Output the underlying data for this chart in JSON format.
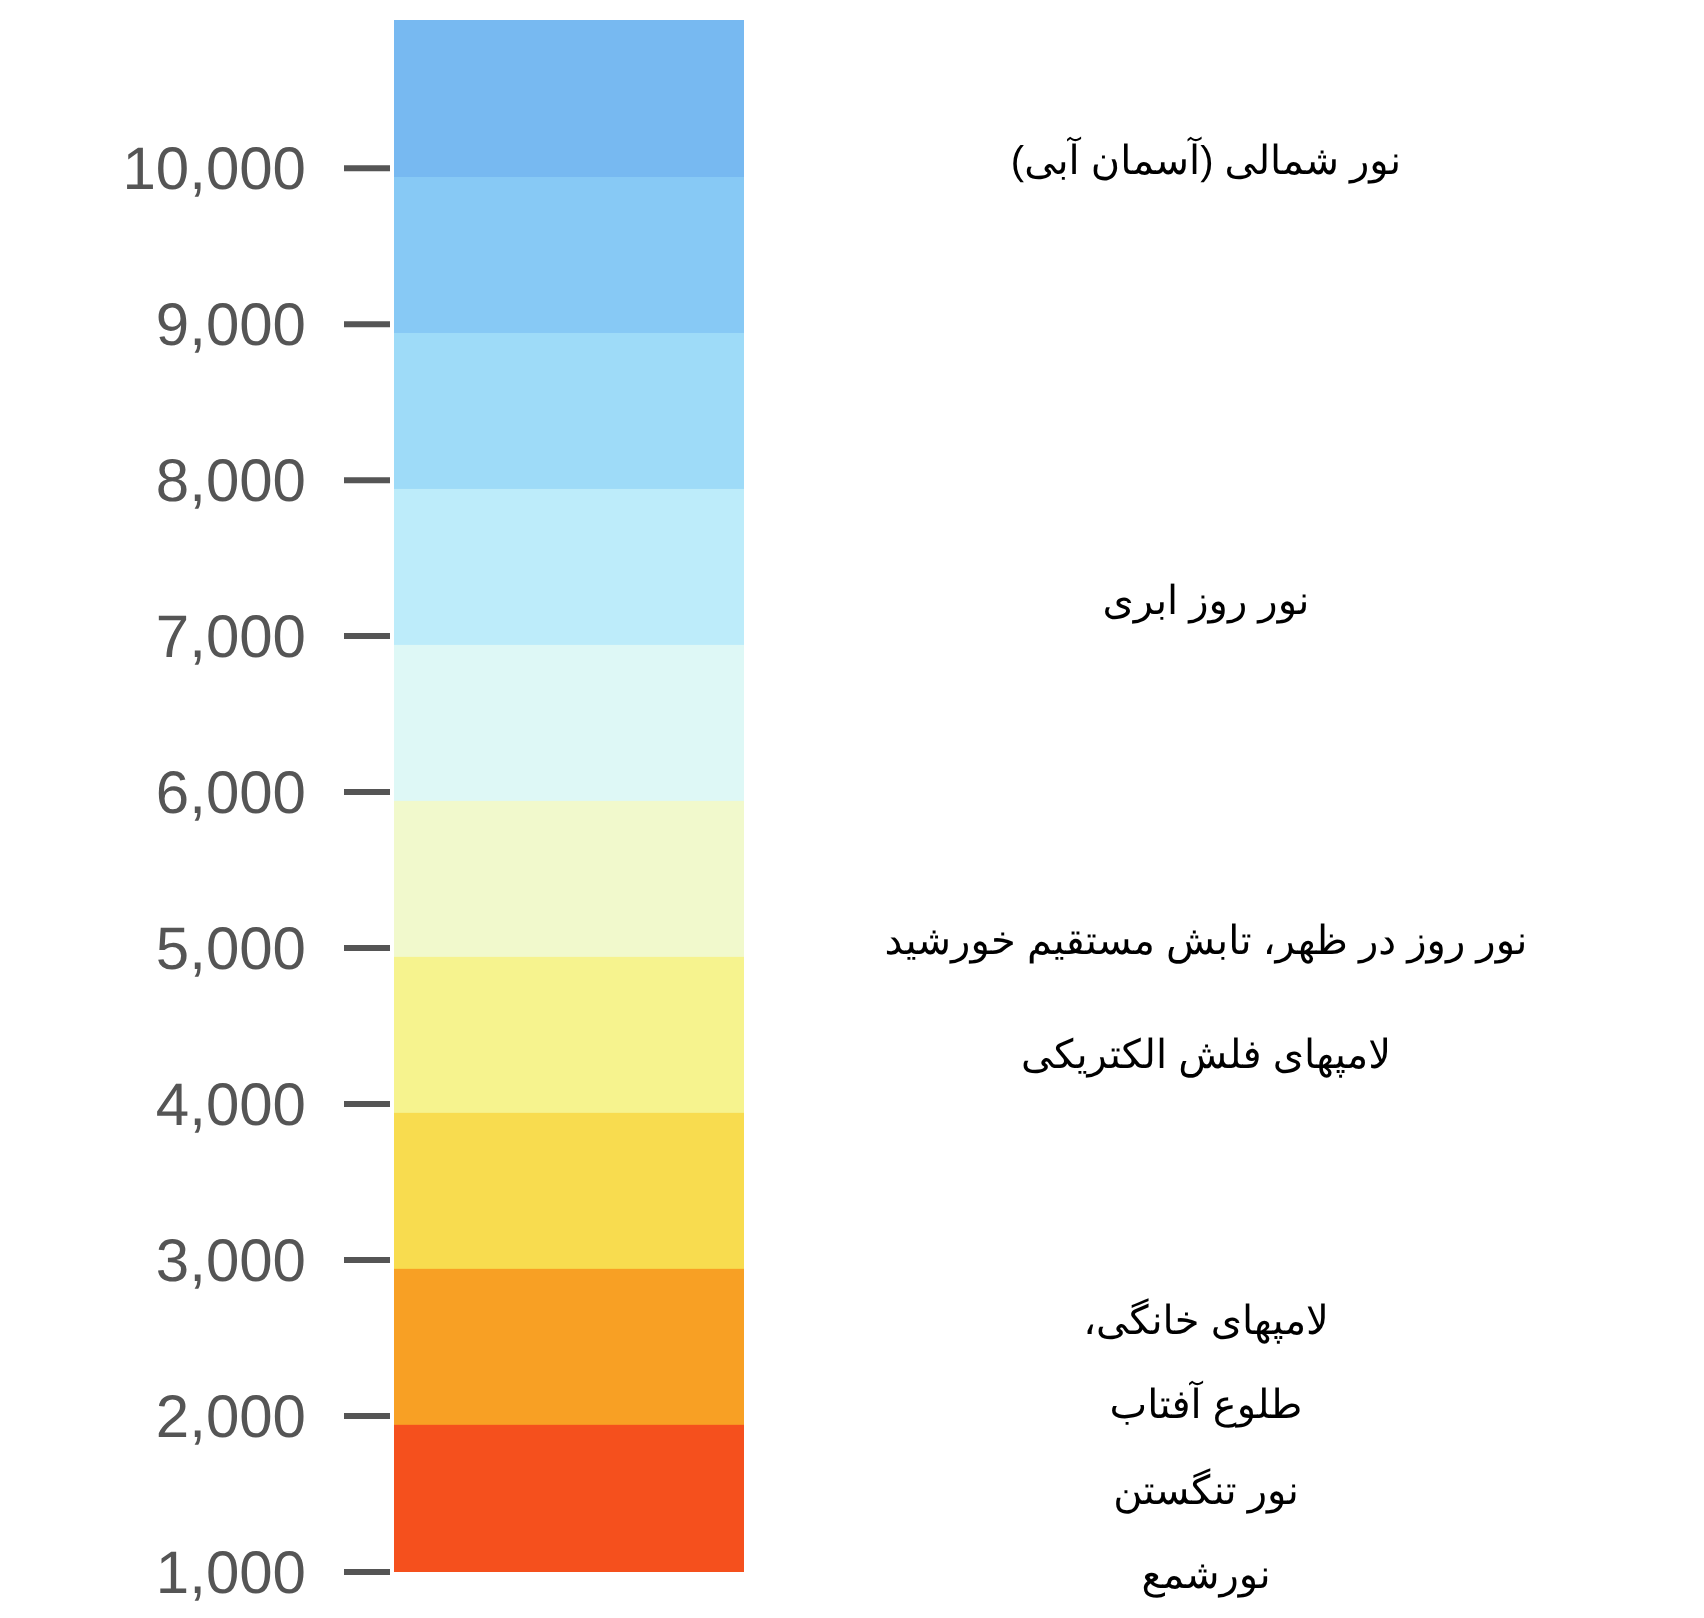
{
  "chart_data": {
    "type": "bar",
    "stacked": true,
    "categories": [
      null
    ],
    "ylim": [
      1000,
      10950
    ],
    "yticks": [
      {
        "value": 1000,
        "label": "1,000"
      },
      {
        "value": 2000,
        "label": "2,000"
      },
      {
        "value": 3000,
        "label": "3,000"
      },
      {
        "value": 4000,
        "label": "4,000"
      },
      {
        "value": 5000,
        "label": "5,000"
      },
      {
        "value": 6000,
        "label": "6,000"
      },
      {
        "value": 7000,
        "label": "7,000"
      },
      {
        "value": 8000,
        "label": "8,000"
      },
      {
        "value": 9000,
        "label": "9,000"
      },
      {
        "value": 10000,
        "label": "10,000"
      }
    ],
    "series": [
      {
        "color": "#f5501d",
        "values": [
          1950
        ]
      },
      {
        "color": "#f8a024",
        "values": [
          1000
        ]
      },
      {
        "color": "#f8dc4f",
        "values": [
          1000
        ]
      },
      {
        "color": "#f6f38e",
        "values": [
          1000
        ]
      },
      {
        "color": "#f1f9cc",
        "values": [
          1000
        ]
      },
      {
        "color": "#def8f6",
        "values": [
          1000
        ]
      },
      {
        "color": "#bdecfa",
        "values": [
          1000
        ]
      },
      {
        "color": "#9edbf8",
        "values": [
          1000
        ]
      },
      {
        "color": "#87c9f5",
        "values": [
          1000
        ]
      },
      {
        "color": "#77b9f1",
        "values": [
          1000
        ]
      }
    ],
    "annotations": [
      "نور شمالی (آسمان آبی)",
      "نور روز ابری",
      "نور روز در ظهر، تابش مستقیم خورشید",
      "لامپهای فلش الکتریکی",
      "لامپهای خانگی،",
      "طلوع آفتاب",
      "نور تنگستن",
      "نورشمع"
    ]
  }
}
